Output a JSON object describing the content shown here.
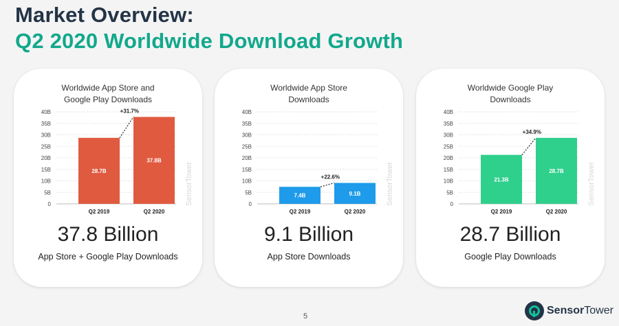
{
  "header": {
    "title_line1": "Market Overview:",
    "title_line2": "Q2 2020 Worldwide Download Growth"
  },
  "colors": {
    "title_dark": "#243447",
    "title_accent": "#12a88c",
    "combined_bar": "#e05a3f",
    "app_store_bar": "#1e9bea",
    "google_play_bar": "#2fcf8c"
  },
  "chart_data": [
    {
      "type": "bar",
      "title": "Worldwide App Store and\nGoogle Play Downloads",
      "categories": [
        "Q2 2019",
        "Q2 2020"
      ],
      "values": [
        28.7,
        37.8
      ],
      "data_labels": [
        "28.7B",
        "37.8B"
      ],
      "growth_label": "+31.7%",
      "yticks": [
        "0",
        "5B",
        "10B",
        "15B",
        "20B",
        "25B",
        "30B",
        "35B",
        "40B"
      ],
      "ylim": [
        0,
        40
      ],
      "color": "#e05a3f",
      "big_value": "37.8 Billion",
      "caption": "App Store + Google Play Downloads"
    },
    {
      "type": "bar",
      "title": "Worldwide App Store\nDownloads",
      "categories": [
        "Q2 2019",
        "Q2 2020"
      ],
      "values": [
        7.4,
        9.1
      ],
      "data_labels": [
        "7.4B",
        "9.1B"
      ],
      "growth_label": "+22.6%",
      "yticks": [
        "0",
        "5B",
        "10B",
        "15B",
        "20B",
        "25B",
        "30B",
        "35B",
        "40B"
      ],
      "ylim": [
        0,
        40
      ],
      "color": "#1e9bea",
      "big_value": "9.1 Billion",
      "caption": "App Store Downloads"
    },
    {
      "type": "bar",
      "title": "Worldwide Google Play\nDownloads",
      "categories": [
        "Q2 2019",
        "Q2 2020"
      ],
      "values": [
        21.3,
        28.7
      ],
      "data_labels": [
        "21.3B",
        "28.7B"
      ],
      "growth_label": "+34.9%",
      "yticks": [
        "0",
        "5B",
        "10B",
        "15B",
        "20B",
        "25B",
        "30B",
        "35B",
        "40B"
      ],
      "ylim": [
        0,
        40
      ],
      "color": "#2fcf8c",
      "big_value": "28.7 Billion",
      "caption": "Google Play Downloads"
    }
  ],
  "footer": {
    "page_number": "5",
    "logo_sensor": "Sensor",
    "logo_tower": "Tower",
    "watermark": "SensorTower"
  }
}
